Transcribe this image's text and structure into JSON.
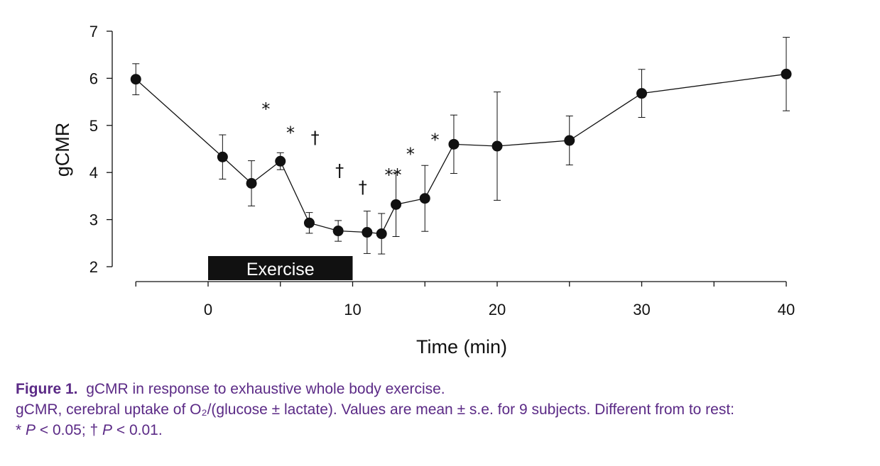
{
  "chart_data": {
    "type": "line",
    "xlabel": "Time (min)",
    "ylabel": "gCMR",
    "xlim": [
      -5,
      40
    ],
    "ylim": [
      2,
      7
    ],
    "x_ticks": [
      "0",
      "10",
      "20",
      "30",
      "40"
    ],
    "y_ticks": [
      "2",
      "3",
      "4",
      "5",
      "6",
      "7"
    ],
    "grid": false,
    "legend": "none",
    "series": [
      {
        "x": [
          -5,
          1,
          3,
          5,
          7,
          9,
          11,
          12,
          13,
          15,
          17,
          20,
          25,
          30,
          40
        ],
        "y": [
          5.98,
          4.33,
          3.77,
          4.24,
          2.93,
          2.76,
          2.73,
          2.7,
          3.32,
          3.45,
          4.6,
          4.56,
          4.68,
          5.68,
          6.09
        ],
        "error": [
          0.33,
          0.47,
          0.48,
          0.18,
          0.22,
          0.22,
          0.45,
          0.43,
          0.68,
          0.7,
          0.62,
          1.15,
          0.52,
          0.51,
          0.78
        ]
      }
    ],
    "annotations": [
      {
        "text": "*",
        "x": 4,
        "y": 5.4
      },
      {
        "text": "*",
        "x": 5.7,
        "y": 4.9
      },
      {
        "text": "†",
        "x": 7.4,
        "y": 4.8
      },
      {
        "text": "†",
        "x": 9.1,
        "y": 4.1
      },
      {
        "text": "†",
        "x": 10.7,
        "y": 3.75
      },
      {
        "text": "**",
        "x": 12.8,
        "y": 4.0
      },
      {
        "text": "*",
        "x": 14,
        "y": 4.45
      },
      {
        "text": "*",
        "x": 15.7,
        "y": 4.75
      }
    ],
    "exercise_bar": {
      "label": "Exercise",
      "x_start": 0,
      "x_end": 10
    }
  },
  "caption": {
    "figure_number": "Figure 1.",
    "title": "gCMR in response to exhaustive whole body exercise.",
    "line2": "gCMR, cerebral uptake of O₂/(glucose ± lactate). Values are mean ± s.e. for 9 subjects. Different from to rest:",
    "line3_star": "* ",
    "line3_p1": "P",
    "line3_rest1": " < 0.05; † ",
    "line3_p2": "P",
    "line3_rest2": " < 0.01."
  },
  "colors": {
    "ink": "#111111",
    "caption": "#5b2a86"
  }
}
